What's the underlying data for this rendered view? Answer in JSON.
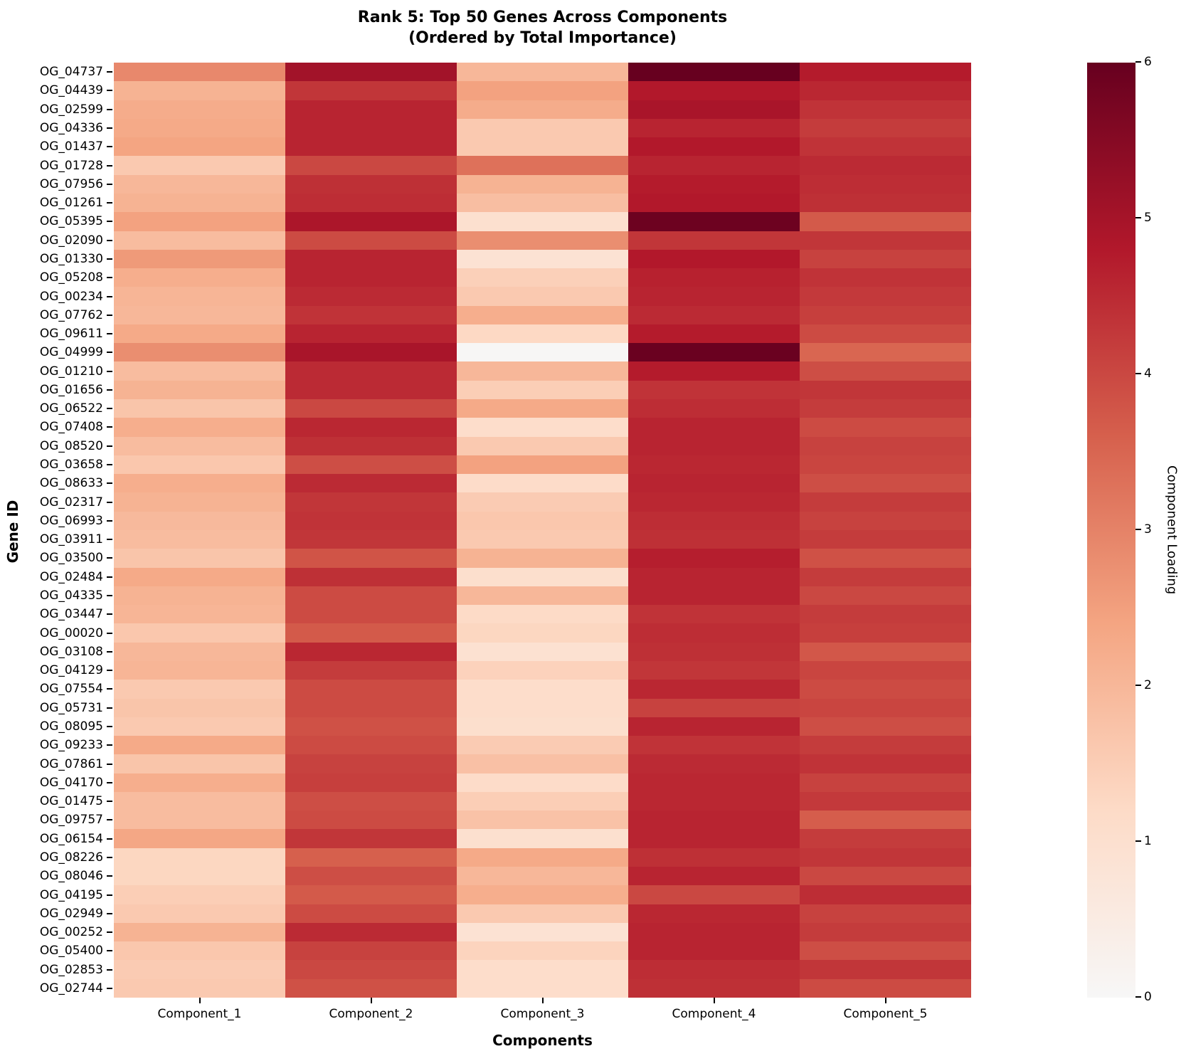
{
  "title": {
    "line1": "Rank 5: Top 50 Genes Across Components",
    "line2": "(Ordered by Total Importance)"
  },
  "chart_data": {
    "type": "heatmap",
    "title": "Rank 5: Top 50 Genes Across Components (Ordered by Total Importance)",
    "xlabel": "Components",
    "ylabel": "Gene ID",
    "legend_position": "right-colorbar",
    "colorbar_label": "Component Loading",
    "colorbar_ticks": [
      0,
      1,
      2,
      3,
      4,
      5,
      6
    ],
    "vmin": 0,
    "vmax": 6,
    "grid": false,
    "colormap_anchors": [
      [
        0.0,
        "#f7f7f7"
      ],
      [
        1.2,
        "#fddbc7"
      ],
      [
        2.4,
        "#f4a582"
      ],
      [
        3.6,
        "#d6604d"
      ],
      [
        4.8,
        "#b2182b"
      ],
      [
        6.0,
        "#67001f"
      ]
    ],
    "categories": [
      "Component_1",
      "Component_2",
      "Component_3",
      "Component_4",
      "Component_5"
    ],
    "genes": [
      "OG_04737",
      "OG_04439",
      "OG_02599",
      "OG_04336",
      "OG_01437",
      "OG_01728",
      "OG_07956",
      "OG_01261",
      "OG_05395",
      "OG_02090",
      "OG_01330",
      "OG_05208",
      "OG_00234",
      "OG_07762",
      "OG_09611",
      "OG_04999",
      "OG_01210",
      "OG_01656",
      "OG_06522",
      "OG_07408",
      "OG_08520",
      "OG_03658",
      "OG_08633",
      "OG_02317",
      "OG_06993",
      "OG_03911",
      "OG_03500",
      "OG_02484",
      "OG_04335",
      "OG_03447",
      "OG_00020",
      "OG_03108",
      "OG_04129",
      "OG_07554",
      "OG_05731",
      "OG_08095",
      "OG_09233",
      "OG_07861",
      "OG_04170",
      "OG_01475",
      "OG_09757",
      "OG_06154",
      "OG_08226",
      "OG_08046",
      "OG_04195",
      "OG_02949",
      "OG_00252",
      "OG_05400",
      "OG_02853",
      "OG_02744"
    ],
    "values": [
      [
        2.9,
        5.05,
        2.0,
        6.0,
        4.75
      ],
      [
        2.1,
        4.3,
        2.45,
        4.8,
        4.55
      ],
      [
        2.25,
        4.6,
        2.25,
        4.95,
        4.35
      ],
      [
        2.3,
        4.6,
        1.6,
        4.6,
        4.2
      ],
      [
        2.4,
        4.6,
        1.6,
        4.8,
        4.35
      ],
      [
        1.6,
        4.0,
        3.3,
        4.6,
        4.5
      ],
      [
        2.0,
        4.4,
        2.1,
        4.75,
        4.45
      ],
      [
        2.1,
        4.45,
        1.85,
        4.8,
        4.4
      ],
      [
        2.45,
        4.9,
        1.0,
        5.9,
        3.7
      ],
      [
        1.9,
        3.95,
        2.8,
        4.3,
        4.3
      ],
      [
        2.6,
        4.6,
        0.9,
        4.8,
        4.1
      ],
      [
        2.2,
        4.6,
        1.45,
        4.65,
        4.35
      ],
      [
        2.05,
        4.5,
        1.6,
        4.6,
        4.25
      ],
      [
        2.0,
        4.35,
        2.2,
        4.5,
        4.15
      ],
      [
        2.3,
        4.6,
        1.25,
        4.75,
        3.95
      ],
      [
        2.8,
        4.95,
        0.05,
        5.95,
        3.5
      ],
      [
        1.9,
        4.5,
        2.0,
        4.75,
        3.9
      ],
      [
        2.1,
        4.5,
        1.5,
        4.35,
        4.3
      ],
      [
        1.7,
        4.0,
        2.3,
        4.45,
        4.2
      ],
      [
        2.2,
        4.55,
        1.1,
        4.6,
        3.95
      ],
      [
        1.9,
        4.4,
        1.6,
        4.6,
        4.1
      ],
      [
        1.65,
        3.9,
        2.45,
        4.55,
        4.05
      ],
      [
        2.2,
        4.5,
        1.15,
        4.6,
        3.9
      ],
      [
        2.1,
        4.3,
        1.55,
        4.55,
        4.2
      ],
      [
        1.95,
        4.35,
        1.65,
        4.45,
        4.1
      ],
      [
        1.9,
        4.3,
        1.6,
        4.4,
        4.2
      ],
      [
        1.7,
        3.8,
        2.1,
        4.7,
        3.85
      ],
      [
        2.3,
        4.4,
        1.05,
        4.6,
        4.2
      ],
      [
        2.1,
        3.95,
        2.0,
        4.6,
        4.0
      ],
      [
        2.05,
        3.95,
        1.2,
        4.35,
        4.2
      ],
      [
        1.65,
        3.7,
        1.3,
        4.45,
        4.15
      ],
      [
        2.0,
        4.55,
        0.95,
        4.4,
        3.75
      ],
      [
        2.05,
        4.2,
        1.4,
        4.3,
        4.05
      ],
      [
        1.6,
        3.95,
        1.1,
        4.55,
        3.95
      ],
      [
        1.7,
        3.95,
        1.1,
        4.1,
        4.05
      ],
      [
        1.6,
        3.85,
        1.05,
        4.6,
        3.9
      ],
      [
        2.3,
        3.95,
        1.55,
        4.35,
        4.2
      ],
      [
        1.7,
        4.1,
        1.8,
        4.5,
        4.35
      ],
      [
        2.2,
        4.15,
        1.15,
        4.55,
        4.1
      ],
      [
        1.9,
        3.9,
        1.5,
        4.55,
        4.25
      ],
      [
        1.9,
        3.95,
        1.75,
        4.6,
        3.65
      ],
      [
        2.35,
        4.3,
        1.0,
        4.6,
        4.2
      ],
      [
        1.3,
        3.6,
        2.3,
        4.4,
        4.3
      ],
      [
        1.3,
        3.9,
        2.0,
        4.6,
        4.0
      ],
      [
        1.5,
        3.7,
        2.2,
        4.0,
        4.45
      ],
      [
        1.6,
        3.95,
        1.6,
        4.55,
        4.1
      ],
      [
        2.1,
        4.5,
        0.9,
        4.6,
        4.2
      ],
      [
        1.65,
        4.1,
        1.35,
        4.6,
        3.9
      ],
      [
        1.55,
        4.0,
        1.1,
        4.45,
        4.3
      ],
      [
        1.6,
        3.85,
        1.1,
        4.4,
        3.95
      ]
    ]
  }
}
